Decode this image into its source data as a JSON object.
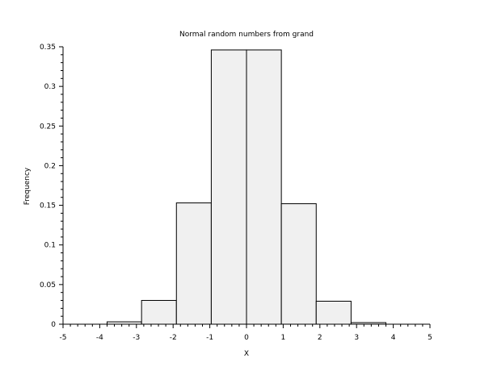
{
  "chart_data": {
    "type": "bar",
    "title": "Normal random numbers from grand",
    "xlabel": "X",
    "ylabel": "Frequency",
    "xlim": [
      -5,
      5
    ],
    "ylim": [
      0,
      0.35
    ],
    "x_ticks": [
      "-5",
      "-4",
      "-3",
      "-2",
      "-1",
      "0",
      "1",
      "2",
      "3",
      "4",
      "5"
    ],
    "y_ticks": [
      "0",
      "0.05",
      "0.1",
      "0.15",
      "0.2",
      "0.25",
      "0.3",
      "0.35"
    ],
    "bins": [
      {
        "x0": -3.8,
        "x1": -2.86,
        "value": 0.003
      },
      {
        "x0": -2.86,
        "x1": -1.91,
        "value": 0.03
      },
      {
        "x0": -1.91,
        "x1": -0.96,
        "value": 0.153
      },
      {
        "x0": -0.96,
        "x1": 0.0,
        "value": 0.346
      },
      {
        "x0": 0.0,
        "x1": 0.95,
        "value": 0.346
      },
      {
        "x0": 0.95,
        "x1": 1.9,
        "value": 0.152
      },
      {
        "x0": 1.9,
        "x1": 2.85,
        "value": 0.029
      },
      {
        "x0": 2.85,
        "x1": 3.8,
        "value": 0.002
      }
    ],
    "grid": false,
    "bar_fill": "#f0f0f0",
    "bar_stroke": "#000000"
  }
}
